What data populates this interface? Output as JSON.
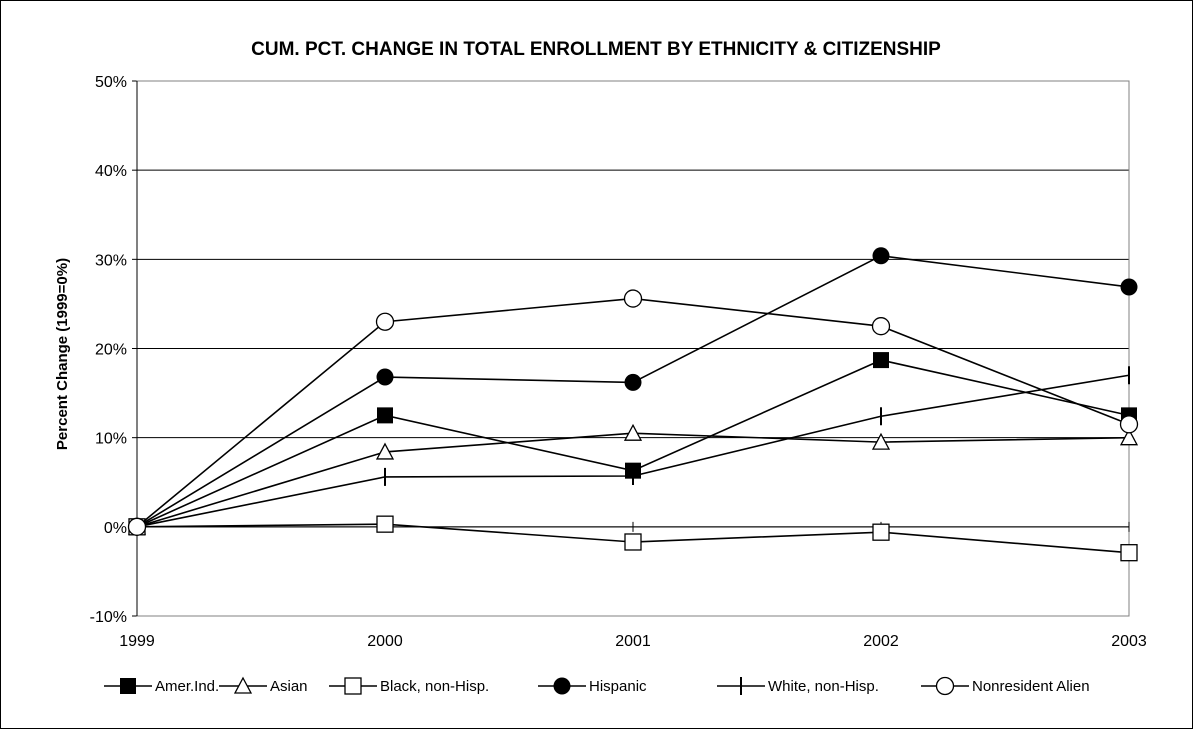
{
  "chart_data": {
    "type": "line",
    "title": "CUM. PCT. CHANGE IN TOTAL ENROLLMENT BY ETHNICITY & CITIZENSHIP",
    "ylabel": "Percent Change (1999=0%)",
    "xlabel": "",
    "categories": [
      "1999",
      "2000",
      "2001",
      "2002",
      "2003"
    ],
    "ylim": [
      -10,
      50
    ],
    "yticks": [
      -10,
      0,
      10,
      20,
      30,
      40,
      50
    ],
    "ytick_labels": [
      "-10%",
      "0%",
      "10%",
      "20%",
      "30%",
      "40%",
      "50%"
    ],
    "grid": true,
    "legend_position": "bottom",
    "series": [
      {
        "name": "Amer.Ind.",
        "marker": "filled-square",
        "values": [
          0,
          12.5,
          6.3,
          18.7,
          12.5
        ]
      },
      {
        "name": "Asian",
        "marker": "open-triangle",
        "values": [
          0,
          8.4,
          10.5,
          9.5,
          10.0
        ]
      },
      {
        "name": "Black, non-Hisp.",
        "marker": "open-square",
        "values": [
          0,
          0.3,
          -1.7,
          -0.6,
          -2.9
        ]
      },
      {
        "name": "Hispanic",
        "marker": "filled-circle",
        "values": [
          0,
          16.8,
          16.2,
          30.4,
          26.9
        ]
      },
      {
        "name": "White, non-Hisp.",
        "marker": "dash",
        "values": [
          0,
          5.6,
          5.7,
          12.4,
          17.0
        ]
      },
      {
        "name": "Nonresident Alien",
        "marker": "open-circle",
        "values": [
          0,
          23.0,
          25.6,
          22.5,
          11.5
        ]
      }
    ],
    "colors": {
      "line": "#000000",
      "grid": "#000000",
      "background": "#ffffff"
    }
  }
}
